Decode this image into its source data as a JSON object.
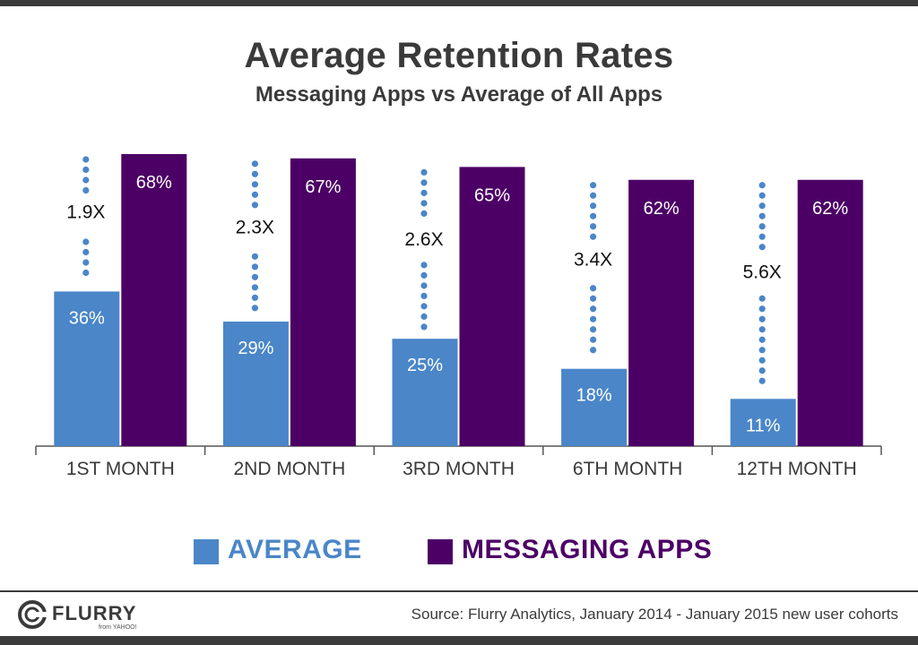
{
  "chart_data": {
    "type": "bar",
    "title": "Average Retention Rates",
    "subtitle": "Messaging Apps vs Average of All Apps",
    "categories": [
      "1ST MONTH",
      "2ND MONTH",
      "3RD MONTH",
      "6TH MONTH",
      "12TH MONTH"
    ],
    "series": [
      {
        "name": "AVERAGE",
        "color": "#4a86c8",
        "values": [
          36,
          29,
          25,
          18,
          11
        ],
        "labels": [
          "36%",
          "29%",
          "25%",
          "18%",
          "11%"
        ]
      },
      {
        "name": "MESSAGING APPS",
        "color": "#4c0066",
        "values": [
          68,
          67,
          65,
          62,
          62
        ],
        "labels": [
          "68%",
          "67%",
          "65%",
          "62%",
          "62%"
        ]
      }
    ],
    "multipliers": [
      "1.9X",
      "2.3X",
      "2.6X",
      "3.4X",
      "5.6X"
    ],
    "ylim": [
      0,
      70
    ],
    "grid": false,
    "legend_position": "bottom"
  },
  "legend": {
    "average_label": "AVERAGE",
    "messaging_label": "MESSAGING APPS",
    "average_color": "#4a86c8",
    "messaging_color": "#4c0066"
  },
  "footer": {
    "logo_text": "FLURRY",
    "logo_sub": "from YAHOO!",
    "source": "Source: Flurry Analytics, January 2014 - January 2015 new user cohorts"
  }
}
